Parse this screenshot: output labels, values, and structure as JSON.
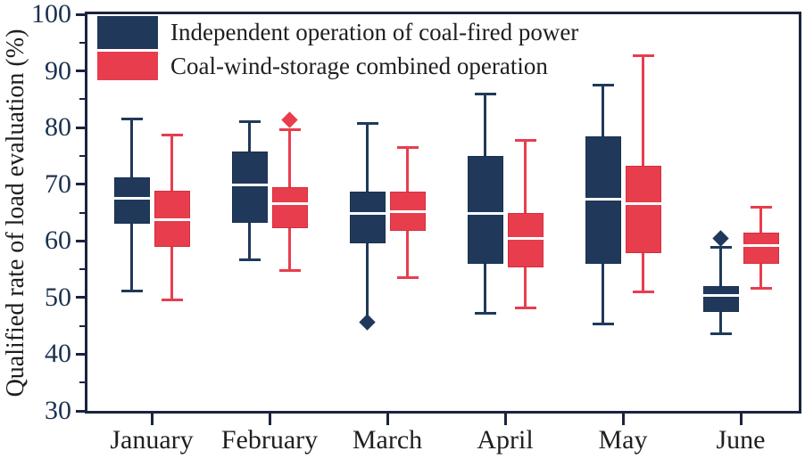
{
  "chart_data": {
    "type": "boxplot",
    "title": "",
    "ylabel": "Qualified rate of load evaluation (%)",
    "xlabel": "",
    "ylim": [
      30,
      100
    ],
    "y_major_ticks": [
      30,
      40,
      50,
      60,
      70,
      80,
      90,
      100
    ],
    "y_minor_ticks": [
      35,
      45,
      55,
      65,
      75,
      85,
      95
    ],
    "categories": [
      "January",
      "February",
      "March",
      "April",
      "May",
      "June"
    ],
    "legend_position": "top-left",
    "grid": false,
    "median_color": "#FFFFFF",
    "axis_color": "#1A2440",
    "tick_label_color": "#1C3150",
    "text_color": "#1F1F1F",
    "outlier_shape": "diamond",
    "series": [
      {
        "name": "Independent operation of coal-fired power",
        "color": "#20395B",
        "border_color": "#19304E",
        "boxes": [
          {
            "low": 51.2,
            "q1": 63.0,
            "median": 67.5,
            "q3": 71.2,
            "high": 81.5
          },
          {
            "low": 56.7,
            "q1": 63.2,
            "median": 69.8,
            "q3": 75.8,
            "high": 81.0
          },
          {
            "low": 46.3,
            "q1": 59.5,
            "median": 64.8,
            "q3": 68.7,
            "high": 80.7,
            "low_cap": false,
            "outliers": [
              45.7
            ]
          },
          {
            "low": 47.3,
            "q1": 55.9,
            "median": 64.8,
            "q3": 75.0,
            "high": 86.0
          },
          {
            "low": 45.4,
            "q1": 55.9,
            "median": 67.4,
            "q3": 78.5,
            "high": 87.5
          },
          {
            "low": 43.6,
            "q1": 47.4,
            "median": 50.4,
            "q3": 52.0,
            "high": 58.8,
            "outliers": [
              60.5
            ]
          }
        ]
      },
      {
        "name": "Coal-wind-storage combined operation",
        "color": "#E83D4D",
        "border_color": "#D52F40",
        "boxes": [
          {
            "low": 49.6,
            "q1": 59.0,
            "median": 63.8,
            "q3": 68.8,
            "high": 78.7
          },
          {
            "low": 54.7,
            "q1": 62.3,
            "median": 66.5,
            "q3": 69.5,
            "high": 79.6,
            "outliers": [
              81.4
            ]
          },
          {
            "low": 53.5,
            "q1": 61.7,
            "median": 65.2,
            "q3": 68.7,
            "high": 76.5
          },
          {
            "low": 48.1,
            "q1": 55.3,
            "median": 60.4,
            "q3": 64.9,
            "high": 77.7
          },
          {
            "low": 51.0,
            "q1": 57.9,
            "median": 66.6,
            "q3": 73.3,
            "high": 92.7
          },
          {
            "low": 51.7,
            "q1": 56.0,
            "median": 59.2,
            "q3": 61.4,
            "high": 66.0
          }
        ]
      }
    ]
  }
}
